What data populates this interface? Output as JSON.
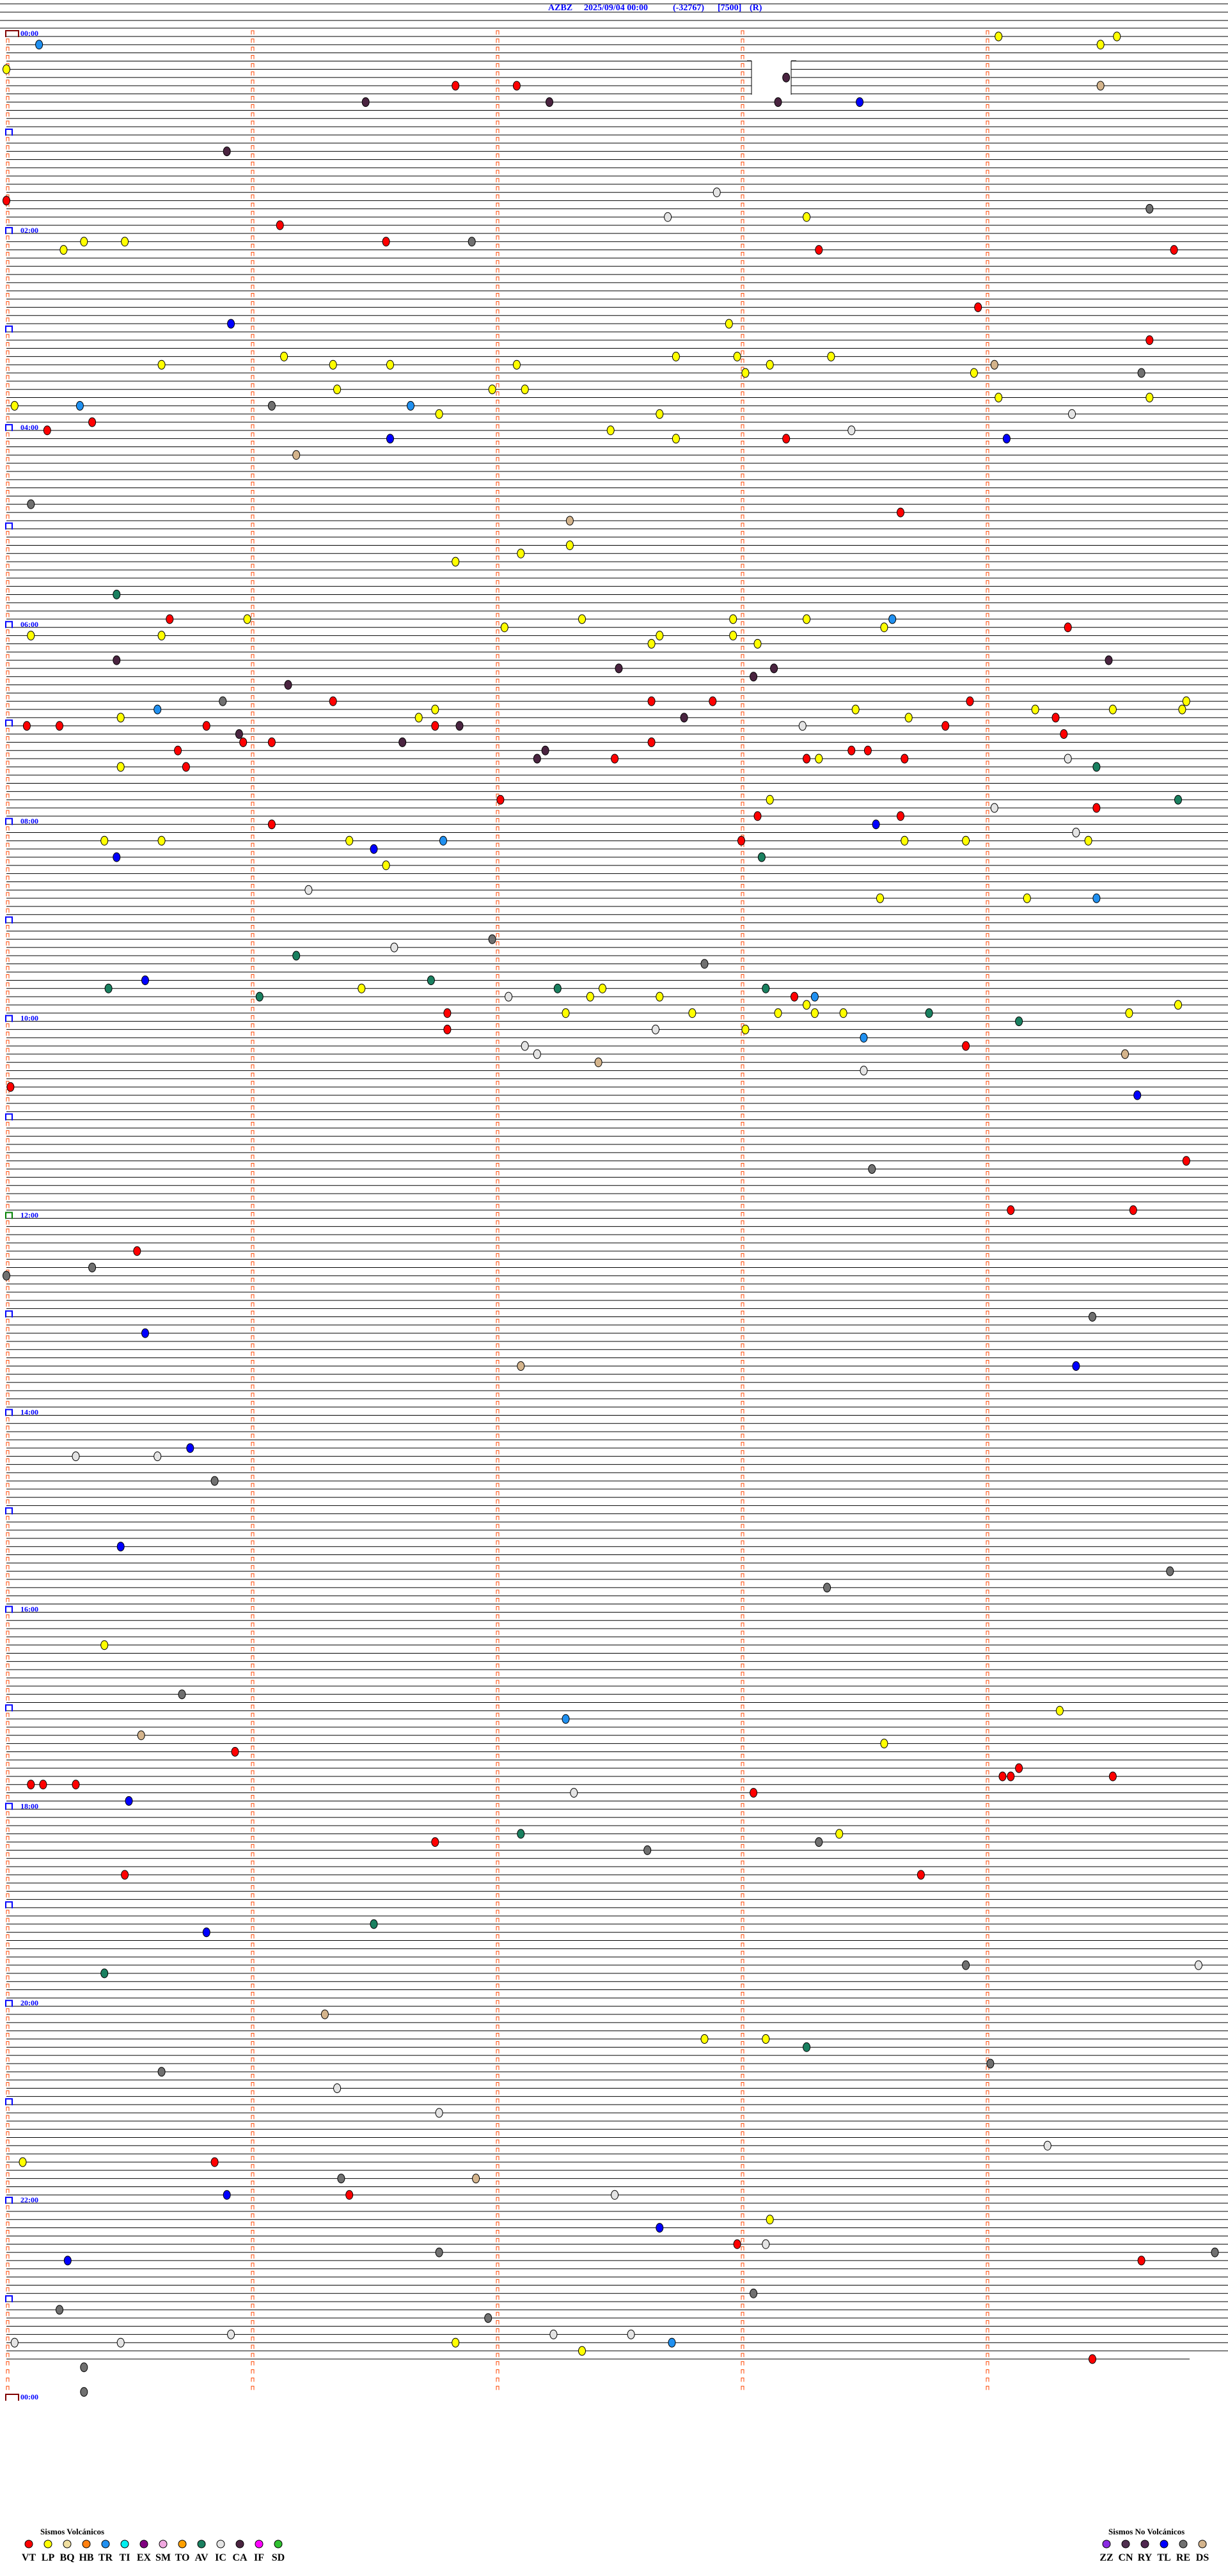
{
  "header": {
    "station": "AZBZ",
    "datetime": "2025/09/04 00:00",
    "value": "(-32767)",
    "scale": "[7500]",
    "mode": "(R)"
  },
  "hour_labels": [
    "00:00",
    "02:00",
    "04:00",
    "06:00",
    "08:00",
    "10:00",
    "12:00",
    "14:00",
    "16:00",
    "18:00",
    "20:00",
    "22:00",
    "00:00"
  ],
  "legend": {
    "volcanic_title": "Sismos Volcánicos",
    "volcanic": [
      {
        "code": "VT",
        "color": "#ff0000"
      },
      {
        "code": "LP",
        "color": "#ffff00"
      },
      {
        "code": "BQ",
        "color": "#f0dfa0"
      },
      {
        "code": "HB",
        "color": "#ff8010"
      },
      {
        "code": "TR",
        "color": "#2090f0"
      },
      {
        "code": "TI",
        "color": "#00f0f0"
      },
      {
        "code": "EX",
        "color": "#800080"
      },
      {
        "code": "SM",
        "color": "#f0a8e0"
      },
      {
        "code": "TO",
        "color": "#ffa000"
      },
      {
        "code": "AV",
        "color": "#1a8060"
      },
      {
        "code": "IC",
        "color": "#e4e4e4"
      },
      {
        "code": "CA",
        "color": "#4a2440"
      },
      {
        "code": "IF",
        "color": "#ff00ff"
      },
      {
        "code": "SD",
        "color": "#30c030"
      }
    ],
    "non_volcanic_title": "Sismos No Volcánicos",
    "non_volcanic": [
      {
        "code": "ZZ",
        "color": "#8a2be2"
      },
      {
        "code": "CN",
        "color": "#503050"
      },
      {
        "code": "RY",
        "color": "#502850"
      },
      {
        "code": "TL",
        "color": "#0000ff"
      },
      {
        "code": "RE",
        "color": "#707070"
      },
      {
        "code": "DS",
        "color": "#d4b48c"
      }
    ]
  },
  "chart_data": {
    "type": "scatter",
    "title": "AZBZ 2025/09/04 00:00 (-32767) [7500] (R)",
    "row_minutes": 5,
    "x_range_minutes": [
      0,
      5
    ],
    "y_range": [
      "00:00",
      "24:00"
    ],
    "trace_end": "23:40",
    "events": [
      [
        "00:04:03",
        "LP"
      ],
      [
        "00:04:32",
        "LP"
      ],
      [
        "00:05:08",
        "TR"
      ],
      [
        "00:09:28",
        "LP"
      ],
      [
        "00:20:00",
        "LP"
      ],
      [
        "00:28:11",
        "CA"
      ],
      [
        "00:31:50",
        "VT"
      ],
      [
        "00:32:05",
        "VT"
      ],
      [
        "00:34:28",
        "DS"
      ],
      [
        "00:41:28",
        "CA"
      ],
      [
        "00:42:13",
        "CA"
      ],
      [
        "00:43:09",
        "CA"
      ],
      [
        "00:43:29",
        "TL"
      ],
      [
        "01:10:54",
        "CA"
      ],
      [
        "01:37:54",
        "IC"
      ],
      [
        "01:40:00",
        "VT"
      ],
      [
        "01:49:40",
        "RE"
      ],
      [
        "01:52:42",
        "IC"
      ],
      [
        "01:53:16",
        "LP"
      ],
      [
        "01:56:07",
        "VT"
      ],
      [
        "02:05:19",
        "LP"
      ],
      [
        "02:05:29",
        "LP"
      ],
      [
        "02:06:33",
        "VT"
      ],
      [
        "02:06:54",
        "RE"
      ],
      [
        "02:10:14",
        "LP"
      ],
      [
        "02:13:19",
        "VT"
      ],
      [
        "02:14:46",
        "VT"
      ],
      [
        "02:48:58",
        "VT"
      ],
      [
        "02:55:55",
        "TL"
      ],
      [
        "02:57:57",
        "LP"
      ],
      [
        "03:09:40",
        "VT"
      ],
      [
        "03:16:08",
        "LP"
      ],
      [
        "03:17:44",
        "LP"
      ],
      [
        "03:17:59",
        "LP"
      ],
      [
        "03:18:22",
        "LP"
      ],
      [
        "03:20:38",
        "LP"
      ],
      [
        "03:21:20",
        "LP"
      ],
      [
        "03:21:34",
        "LP"
      ],
      [
        "03:22:05",
        "LP"
      ],
      [
        "03:23:07",
        "LP"
      ],
      [
        "03:24:02",
        "DS"
      ],
      [
        "03:28:01",
        "LP"
      ],
      [
        "03:28:57",
        "LP"
      ],
      [
        "03:29:38",
        "RE"
      ],
      [
        "03:36:21",
        "LP"
      ],
      [
        "03:36:59",
        "LP"
      ],
      [
        "03:37:07",
        "LP"
      ],
      [
        "03:44:03",
        "LP"
      ],
      [
        "03:44:40",
        "LP"
      ],
      [
        "03:45:02",
        "LP"
      ],
      [
        "03:45:18",
        "TR"
      ],
      [
        "03:46:05",
        "RE"
      ],
      [
        "03:46:39",
        "TR"
      ],
      [
        "03:51:46",
        "LP"
      ],
      [
        "03:52:40",
        "LP"
      ],
      [
        "03:54:21",
        "IC"
      ],
      [
        "03:55:21",
        "VT"
      ],
      [
        "04:00:10",
        "VT"
      ],
      [
        "04:02:28",
        "LP"
      ],
      [
        "04:03:27",
        "IC"
      ],
      [
        "04:06:34",
        "TL"
      ],
      [
        "04:07:44",
        "LP"
      ],
      [
        "04:08:11",
        "VT"
      ],
      [
        "04:09:05",
        "TL"
      ],
      [
        "04:16:11",
        "DS"
      ],
      [
        "04:45:06",
        "RE"
      ],
      [
        "04:53:39",
        "VT"
      ],
      [
        "04:57:18",
        "DS"
      ],
      [
        "05:12:18",
        "LP"
      ],
      [
        "05:17:06",
        "LP"
      ],
      [
        "05:21:50",
        "LP"
      ],
      [
        "05:40:27",
        "AV"
      ],
      [
        "05:55:40",
        "VT"
      ],
      [
        "05:55:59",
        "LP"
      ],
      [
        "05:57:21",
        "LP"
      ],
      [
        "05:57:58",
        "LP"
      ],
      [
        "05:58:16",
        "LP"
      ],
      [
        "05:58:37",
        "TR"
      ],
      [
        "06:02:02",
        "LP"
      ],
      [
        "06:03:35",
        "LP"
      ],
      [
        "06:04:20",
        "VT"
      ],
      [
        "06:05:06",
        "LP"
      ],
      [
        "06:05:38",
        "LP"
      ],
      [
        "06:07:40",
        "LP"
      ],
      [
        "06:07:58",
        "LP"
      ],
      [
        "06:12:38",
        "LP"
      ],
      [
        "06:13:04",
        "LP"
      ],
      [
        "06:20:27",
        "CA"
      ],
      [
        "06:24:30",
        "CA"
      ],
      [
        "06:27:30",
        "CA"
      ],
      [
        "06:28:08",
        "CA"
      ],
      [
        "06:33:03",
        "CA"
      ],
      [
        "06:36:09",
        "CA"
      ],
      [
        "06:45:53",
        "RE"
      ],
      [
        "06:46:20",
        "VT"
      ],
      [
        "06:47:38",
        "VT"
      ],
      [
        "06:47:53",
        "VT"
      ],
      [
        "06:48:56",
        "VT"
      ],
      [
        "06:49:49",
        "LP"
      ],
      [
        "06:50:37",
        "TR"
      ],
      [
        "06:51:45",
        "LP"
      ],
      [
        "06:53:28",
        "LP"
      ],
      [
        "06:54:12",
        "LP"
      ],
      [
        "06:54:31",
        "LP"
      ],
      [
        "06:54:48",
        "LP"
      ],
      [
        "06:55:28",
        "LP"
      ],
      [
        "06:56:41",
        "LP"
      ],
      [
        "06:57:46",
        "CA"
      ],
      [
        "06:58:41",
        "LP"
      ],
      [
        "06:59:17",
        "VT"
      ],
      [
        "07:00:05",
        "VT"
      ],
      [
        "07:00:13",
        "VT"
      ],
      [
        "07:00:49",
        "VT"
      ],
      [
        "07:01:45",
        "VT"
      ],
      [
        "07:01:51",
        "CA"
      ],
      [
        "07:03:15",
        "IC"
      ],
      [
        "07:03:50",
        "VT"
      ],
      [
        "07:05:57",
        "CA"
      ],
      [
        "07:09:19",
        "VT"
      ],
      [
        "07:10:58",
        "VT"
      ],
      [
        "07:11:05",
        "VT"
      ],
      [
        "07:11:37",
        "CA"
      ],
      [
        "07:12:38",
        "VT"
      ],
      [
        "07:15:42",
        "VT"
      ],
      [
        "07:17:12",
        "CA"
      ],
      [
        "07:18:27",
        "VT"
      ],
      [
        "07:18:31",
        "VT"
      ],
      [
        "07:22:10",
        "CA"
      ],
      [
        "07:22:29",
        "VT"
      ],
      [
        "07:23:16",
        "VT"
      ],
      [
        "07:23:19",
        "LP"
      ],
      [
        "07:23:40",
        "VT"
      ],
      [
        "07:24:20",
        "IC"
      ],
      [
        "07:25:28",
        "LP"
      ],
      [
        "07:25:44",
        "VT"
      ],
      [
        "07:29:27",
        "AV"
      ],
      [
        "07:47:01",
        "VT"
      ],
      [
        "07:48:07",
        "LP"
      ],
      [
        "07:49:47",
        "AV"
      ],
      [
        "07:54:02",
        "IC"
      ],
      [
        "07:54:27",
        "VT"
      ],
      [
        "07:58:04",
        "VT"
      ],
      [
        "07:58:39",
        "VT"
      ],
      [
        "08:01:05",
        "VT"
      ],
      [
        "08:03:33",
        "TL"
      ],
      [
        "08:09:22",
        "IC"
      ],
      [
        "08:10:24",
        "LP"
      ],
      [
        "08:10:38",
        "LP"
      ],
      [
        "08:11:24",
        "LP"
      ],
      [
        "08:11:47",
        "TR"
      ],
      [
        "08:13:00",
        "VT"
      ],
      [
        "08:13:40",
        "LP"
      ],
      [
        "08:13:55",
        "LP"
      ],
      [
        "08:14:25",
        "LP"
      ],
      [
        "08:16:30",
        "TL"
      ],
      [
        "08:20:27",
        "TL"
      ],
      [
        "08:23:05",
        "AV"
      ],
      [
        "08:26:33",
        "LP"
      ],
      [
        "08:41:14",
        "IC"
      ],
      [
        "08:48:34",
        "LP"
      ],
      [
        "08:49:10",
        "LP"
      ],
      [
        "08:49:27",
        "TR"
      ],
      [
        "09:11:59",
        "RE"
      ],
      [
        "09:16:35",
        "IC"
      ],
      [
        "09:21:11",
        "AV"
      ],
      [
        "09:27:51",
        "RE"
      ],
      [
        "09:35:34",
        "TL"
      ],
      [
        "09:36:44",
        "AV"
      ],
      [
        "09:40:25",
        "AV"
      ],
      [
        "09:41:27",
        "LP"
      ],
      [
        "09:42:15",
        "AV"
      ],
      [
        "09:42:26",
        "LP"
      ],
      [
        "09:43:06",
        "AV"
      ],
      [
        "09:46:02",
        "AV"
      ],
      [
        "09:47:03",
        "IC"
      ],
      [
        "09:47:23",
        "LP"
      ],
      [
        "09:47:40",
        "LP"
      ],
      [
        "09:48:13",
        "VT"
      ],
      [
        "09:48:18",
        "TR"
      ],
      [
        "09:53:16",
        "LP"
      ],
      [
        "09:54:47",
        "LP"
      ],
      [
        "09:56:48",
        "VT"
      ],
      [
        "09:57:17",
        "LP"
      ],
      [
        "09:57:48",
        "LP"
      ],
      [
        "09:58:09",
        "LP"
      ],
      [
        "09:58:18",
        "LP"
      ],
      [
        "09:58:25",
        "LP"
      ],
      [
        "09:58:46",
        "AV"
      ],
      [
        "09:59:35",
        "LP"
      ],
      [
        "10:04:08",
        "AV"
      ],
      [
        "10:06:48",
        "VT"
      ],
      [
        "10:07:39",
        "IC"
      ],
      [
        "10:08:01",
        "LP"
      ],
      [
        "10:13:30",
        "TR"
      ],
      [
        "10:17:07",
        "IC"
      ],
      [
        "10:18:55",
        "VT"
      ],
      [
        "10:22:10",
        "IC"
      ],
      [
        "10:24:34",
        "DS"
      ],
      [
        "10:27:25",
        "DS"
      ],
      [
        "10:33:30",
        "IC"
      ],
      [
        "10:40:01",
        "VT"
      ],
      [
        "10:49:37",
        "TL"
      ],
      [
        "11:29:49",
        "VT"
      ],
      [
        "11:33:32",
        "RE"
      ],
      [
        "11:59:06",
        "VT"
      ],
      [
        "11:59:36",
        "VT"
      ],
      [
        "12:20:32",
        "VT"
      ],
      [
        "12:30:21",
        "RE"
      ],
      [
        "12:35:00",
        "RE"
      ],
      [
        "13:04:26",
        "RE"
      ],
      [
        "13:10:34",
        "TL"
      ],
      [
        "13:32:06",
        "DS"
      ],
      [
        "13:34:22",
        "TL"
      ],
      [
        "14:20:45",
        "TL"
      ],
      [
        "14:25:17",
        "IC"
      ],
      [
        "14:25:37",
        "IC"
      ],
      [
        "14:40:51",
        "RE"
      ],
      [
        "15:20:28",
        "TL"
      ],
      [
        "15:39:45",
        "RE"
      ],
      [
        "15:48:21",
        "RE"
      ],
      [
        "16:20:24",
        "LP"
      ],
      [
        "16:50:43",
        "RE"
      ],
      [
        "17:04:18",
        "LP"
      ],
      [
        "17:07:17",
        "TR"
      ],
      [
        "17:15:33",
        "DS"
      ],
      [
        "17:23:35",
        "LP"
      ],
      [
        "17:25:56",
        "VT"
      ],
      [
        "17:39:08",
        "VT"
      ],
      [
        "17:44:04",
        "VT"
      ],
      [
        "17:44:06",
        "VT"
      ],
      [
        "17:44:31",
        "VT"
      ],
      [
        "17:45:06",
        "VT"
      ],
      [
        "17:45:09",
        "VT"
      ],
      [
        "17:45:17",
        "VT"
      ],
      [
        "17:52:19",
        "IC"
      ],
      [
        "17:53:03",
        "VT"
      ],
      [
        "17:55:30",
        "TL"
      ],
      [
        "18:17:06",
        "AV"
      ],
      [
        "18:18:24",
        "LP"
      ],
      [
        "18:21:45",
        "VT"
      ],
      [
        "18:23:19",
        "RE"
      ],
      [
        "18:27:37",
        "RE"
      ],
      [
        "18:40:29",
        "VT"
      ],
      [
        "18:43:44",
        "VT"
      ],
      [
        "19:11:30",
        "AV"
      ],
      [
        "19:15:49",
        "TL"
      ],
      [
        "19:38:55",
        "RE"
      ],
      [
        "19:39:52",
        "IC"
      ],
      [
        "19:40:24",
        "AV"
      ],
      [
        "20:06:18",
        "DS"
      ],
      [
        "20:22:51",
        "LP"
      ],
      [
        "20:23:06",
        "LP"
      ],
      [
        "20:28:16",
        "AV"
      ],
      [
        "20:39:01",
        "RE"
      ],
      [
        "20:40:38",
        "RE"
      ],
      [
        "20:51:21",
        "IC"
      ],
      [
        "21:06:46",
        "IC"
      ],
      [
        "21:29:15",
        "IC"
      ],
      [
        "21:35:04",
        "LP"
      ],
      [
        "21:35:51",
        "VT"
      ],
      [
        "21:46:22",
        "RE"
      ],
      [
        "21:46:55",
        "DS"
      ],
      [
        "21:55:54",
        "TL"
      ],
      [
        "21:56:24",
        "VT"
      ],
      [
        "21:57:29",
        "IC"
      ],
      [
        "22:13:07",
        "LP"
      ],
      [
        "22:17:40",
        "TL"
      ],
      [
        "22:27:59",
        "VT"
      ],
      [
        "22:28:06",
        "IC"
      ],
      [
        "22:31:46",
        "RE"
      ],
      [
        "22:34:56",
        "RE"
      ],
      [
        "22:35:15",
        "TL"
      ],
      [
        "22:39:38",
        "VT"
      ],
      [
        "22:58:03",
        "RE"
      ],
      [
        "23:05:13",
        "RE"
      ],
      [
        "23:11:58",
        "RE"
      ],
      [
        "23:20:55",
        "IC"
      ],
      [
        "23:22:14",
        "IC"
      ],
      [
        "23:22:33",
        "IC"
      ],
      [
        "23:25:02",
        "IC"
      ],
      [
        "23:25:28",
        "IC"
      ],
      [
        "23:26:50",
        "LP"
      ],
      [
        "23:27:43",
        "TR"
      ],
      [
        "23:32:21",
        "LP"
      ],
      [
        "23:39:26",
        "VT"
      ],
      [
        "23:40:19",
        "RE"
      ],
      [
        "23:55:19",
        "RE"
      ]
    ]
  }
}
